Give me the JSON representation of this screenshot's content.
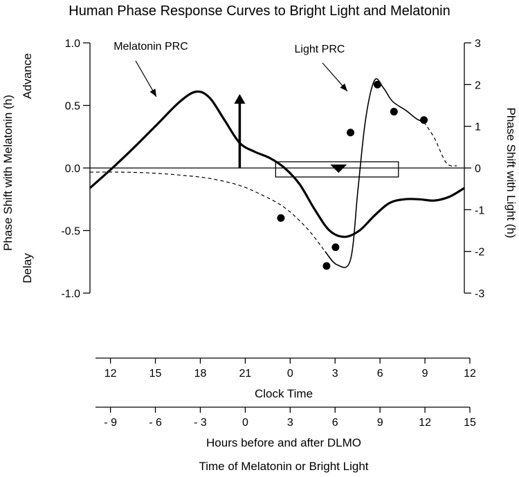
{
  "chart_data": {
    "type": "line",
    "title": "Human Phase Response Curves to Bright Light and Melatonin",
    "y_left": {
      "label": "Phase Shift with Melatonin (h)",
      "range": [
        -1.0,
        1.0
      ],
      "ticks": [
        "1.0",
        "0.5",
        "0.0",
        "-0.5",
        "-1.0"
      ],
      "tick_values": [
        1.0,
        0.5,
        0.0,
        -0.5,
        -1.0
      ],
      "advance_label": "Advance",
      "delay_label": "Delay"
    },
    "y_right": {
      "label": "Phase Shift with Light (h)",
      "range": [
        -3,
        3
      ],
      "ticks": [
        "3",
        "2",
        "1",
        "0",
        "-1",
        "-2",
        "-3"
      ],
      "tick_values": [
        3,
        2,
        1,
        0,
        -1,
        -2,
        -3
      ]
    },
    "x_clock": {
      "label": "Clock Time",
      "range": [
        11,
        36
      ],
      "ticks": [
        "12",
        "15",
        "18",
        "21",
        "0",
        "3",
        "6",
        "9",
        "12"
      ],
      "tick_positions": [
        12,
        15,
        18,
        21,
        24,
        27,
        30,
        33,
        36
      ]
    },
    "x_dlmo": {
      "label": "Hours before and after DLMO",
      "range": [
        -10,
        15
      ],
      "ticks": [
        "- 9",
        "- 6",
        "- 3",
        "0",
        "3",
        "6",
        "9",
        "12",
        "15"
      ],
      "tick_positions": [
        -9,
        -6,
        -3,
        0,
        3,
        6,
        9,
        12,
        15
      ]
    },
    "footer_label": "Time of Melatonin or Bright Light",
    "series": [
      {
        "name": "Melatonin PRC",
        "axis": "left",
        "style": "thick-solid",
        "x": [
          11,
          12.5,
          14,
          15.5,
          17,
          18.1,
          19,
          20,
          21,
          22,
          23,
          24,
          25,
          26,
          27,
          28,
          29,
          30,
          31,
          32,
          33,
          34,
          35,
          36
        ],
        "y": [
          -0.16,
          0.0,
          0.17,
          0.35,
          0.53,
          0.61,
          0.56,
          0.38,
          0.2,
          0.13,
          0.08,
          0.0,
          -0.13,
          -0.33,
          -0.5,
          -0.55,
          -0.5,
          -0.38,
          -0.28,
          -0.25,
          -0.25,
          -0.26,
          -0.23,
          -0.16
        ]
      },
      {
        "name": "Light PRC",
        "axis": "right",
        "style": "thin",
        "dashed_x": [
          11,
          13,
          15,
          17,
          19,
          21,
          22.5,
          24,
          25.5,
          26.7
        ],
        "dashed_y": [
          -0.1,
          -0.1,
          -0.12,
          -0.17,
          -0.25,
          -0.42,
          -0.65,
          -0.95,
          -1.45,
          -2.0
        ],
        "solid_x": [
          26.7,
          27.5,
          28.4,
          28.9,
          29.4,
          30.0,
          30.6,
          31.2,
          32.1,
          32.8,
          33.3
        ],
        "solid_y": [
          -2.0,
          -2.32,
          -2.2,
          -0.5,
          1.15,
          2.1,
          1.92,
          1.6,
          1.38,
          1.18,
          1.1
        ],
        "dashed2_x": [
          33.3,
          34.0,
          34.8,
          35.5
        ],
        "dashed2_y": [
          1.1,
          0.72,
          0.12,
          0.05
        ],
        "points_x": [
          23.75,
          26.8,
          27.4,
          28.4,
          30.2,
          31.3,
          33.3
        ],
        "points_y": [
          -1.2,
          -2.35,
          -1.9,
          0.85,
          2.0,
          1.35,
          1.15
        ]
      }
    ],
    "annotations": [
      {
        "text": "Melatonin PRC",
        "points_to_x": 15.6,
        "points_to_y": 0.36
      },
      {
        "text": "Light PRC",
        "points_to_x": 28.0,
        "points_to_y": 0.6
      }
    ],
    "markers": {
      "up_arrow_x": 21,
      "up_arrow_y_from": 0.0,
      "up_arrow_y_to": 0.58,
      "down_triangle_x": 27.6,
      "box_x_from": 23.4,
      "box_x_to": 31.6
    }
  }
}
